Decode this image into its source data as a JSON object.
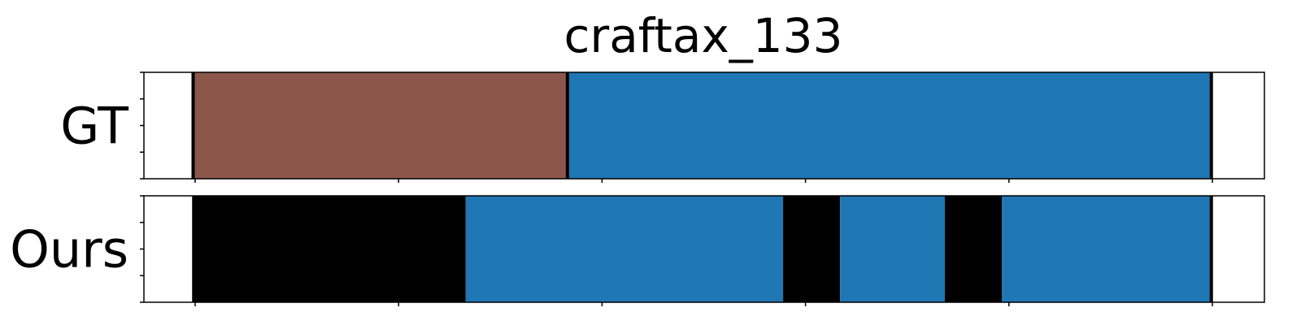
{
  "chart_data": {
    "type": "bar",
    "title": "craftax_133",
    "xlabel": "",
    "ylabel": "",
    "xlim": [
      0,
      100
    ],
    "x_ticks": [
      5,
      25,
      45,
      65,
      85,
      105
    ],
    "y_ticks_per_row": 5,
    "grid": false,
    "legend": "none",
    "rows": [
      {
        "label": "GT",
        "segments": [
          {
            "start": 4.8,
            "end": 41.6,
            "color": "#8c564b"
          },
          {
            "start": 41.6,
            "end": 104.9,
            "color": "#1f77b4"
          }
        ],
        "boundaries": [
          4.8,
          41.6,
          104.9
        ]
      },
      {
        "label": "Ours",
        "segments": [
          {
            "start": 4.7,
            "end": 31.6,
            "color": "#000000"
          },
          {
            "start": 31.6,
            "end": 62.8,
            "color": "#1f77b4"
          },
          {
            "start": 62.8,
            "end": 68.4,
            "color": "#000000"
          },
          {
            "start": 68.4,
            "end": 78.7,
            "color": "#1f77b4"
          },
          {
            "start": 78.7,
            "end": 84.3,
            "color": "#000000"
          },
          {
            "start": 84.3,
            "end": 104.9,
            "color": "#1f77b4"
          }
        ],
        "boundaries": [
          104.9
        ]
      }
    ]
  }
}
